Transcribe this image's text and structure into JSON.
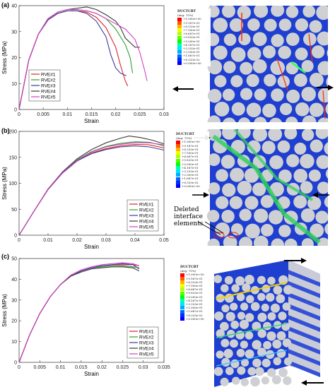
{
  "panels": [
    {
      "label": "(a)",
      "xlabel": "Strain",
      "ylabel": "Stress (MPa)"
    },
    {
      "label": "(b)",
      "xlabel": "Strain",
      "ylabel": "Stress (MPa)"
    },
    {
      "label": "(c)",
      "xlabel": "Strain",
      "ylabel": "Stress (MPa)"
    }
  ],
  "fringe_legend": {
    "title": "DUCTCRT",
    "subtitle": "(Avg: 75%)",
    "values": [
      "+1.000e+00",
      "+9.167e-01",
      "+8.333e-01",
      "+7.500e-01",
      "+6.667e-01",
      "+5.833e-01",
      "+5.000e-01",
      "+4.167e-01",
      "+3.333e-01",
      "+2.500e-01",
      "+1.667e-01",
      "+8.333e-02",
      "+0.000e+00"
    ],
    "colors": [
      "#ff0000",
      "#ff5a00",
      "#ffb400",
      "#f0ff00",
      "#b4ff00",
      "#5aff00",
      "#00ff00",
      "#00ffb4",
      "#00e6ff",
      "#00aaff",
      "#0064ff",
      "#0028ff",
      "#0000ff"
    ]
  },
  "annotation": "Deleted interface elements",
  "chart_data": [
    {
      "type": "line",
      "title": "",
      "xlabel": "Strain",
      "ylabel": "Stress (MPa)",
      "xlim": [
        0,
        0.03
      ],
      "ylim": [
        0,
        40
      ],
      "xticks": [
        "0",
        "0.005",
        "0.01",
        "0.015",
        "0.02",
        "0.025",
        "0.03"
      ],
      "yticks": [
        "0",
        "10",
        "20",
        "30",
        "40"
      ],
      "legend": "lower-left",
      "series": [
        {
          "name": "RVE#1",
          "color": "#d9262b",
          "x": [
            0,
            0.002,
            0.004,
            0.006,
            0.008,
            0.01,
            0.012,
            0.014,
            0.016,
            0.018,
            0.02,
            0.021,
            0.022,
            0.0225
          ],
          "y": [
            0,
            19,
            29,
            34.5,
            37,
            38,
            38,
            37.5,
            35.5,
            31.5,
            24,
            17,
            11,
            9
          ]
        },
        {
          "name": "RVE#2",
          "color": "#2ea02e",
          "x": [
            0,
            0.002,
            0.004,
            0.006,
            0.008,
            0.01,
            0.012,
            0.014,
            0.016,
            0.018,
            0.02,
            0.022,
            0.023,
            0.0235
          ],
          "y": [
            0,
            19,
            29,
            35,
            37.5,
            38.5,
            38.5,
            38,
            37,
            35,
            31,
            25,
            20,
            14
          ]
        },
        {
          "name": "RVE#3",
          "color": "#3b3b9e",
          "x": [
            0,
            0.002,
            0.004,
            0.006,
            0.008,
            0.01,
            0.012,
            0.014,
            0.016,
            0.018,
            0.019,
            0.02,
            0.021,
            0.0222
          ],
          "y": [
            0,
            19,
            29,
            34.5,
            37,
            38,
            38,
            37,
            34,
            28,
            21,
            16,
            14,
            13
          ]
        },
        {
          "name": "RVE#4",
          "color": "#3a3a3a",
          "x": [
            0,
            0.002,
            0.004,
            0.006,
            0.008,
            0.01,
            0.012,
            0.014,
            0.016,
            0.018,
            0.02,
            0.021,
            0.022,
            0.024,
            0.025
          ],
          "y": [
            0,
            19,
            29,
            35,
            37.5,
            38.5,
            39,
            39.5,
            38.5,
            36.5,
            34,
            31.5,
            27.5,
            24,
            24
          ]
        },
        {
          "name": "RVE#5",
          "color": "#d63fc4",
          "x": [
            0,
            0.002,
            0.004,
            0.006,
            0.008,
            0.01,
            0.012,
            0.014,
            0.016,
            0.018,
            0.02,
            0.022,
            0.024,
            0.025,
            0.026,
            0.0265
          ],
          "y": [
            0,
            19,
            29,
            35,
            37.5,
            38.5,
            38.5,
            38,
            37,
            35,
            33,
            31,
            27,
            22,
            15,
            11
          ]
        }
      ]
    },
    {
      "type": "line",
      "title": "",
      "xlabel": "Strain",
      "ylabel": "Stress (MPa)",
      "xlim": [
        0,
        0.05
      ],
      "ylim": [
        0,
        200
      ],
      "xticks": [
        "0",
        "0.01",
        "0.02",
        "0.03",
        "0.04",
        "0.05"
      ],
      "yticks": [
        "0",
        "50",
        "100",
        "150",
        "200"
      ],
      "legend": "lower-right",
      "series": [
        {
          "name": "RVE#1",
          "color": "#d9262b",
          "x": [
            0,
            0.005,
            0.01,
            0.015,
            0.02,
            0.025,
            0.03,
            0.035,
            0.04,
            0.045,
            0.05
          ],
          "y": [
            0,
            45,
            88,
            120,
            143,
            158,
            167,
            172,
            175,
            174,
            168
          ]
        },
        {
          "name": "RVE#2",
          "color": "#2ea02e",
          "x": [
            0,
            0.005,
            0.01,
            0.015,
            0.02,
            0.025,
            0.03,
            0.035,
            0.04,
            0.045,
            0.05
          ],
          "y": [
            0,
            45,
            88,
            121,
            145,
            161,
            171,
            177,
            180,
            179,
            172
          ]
        },
        {
          "name": "RVE#3",
          "color": "#3b3b9e",
          "x": [
            0,
            0.005,
            0.01,
            0.015,
            0.02,
            0.025,
            0.03,
            0.035,
            0.04,
            0.045,
            0.05
          ],
          "y": [
            0,
            45,
            88,
            120,
            143,
            157,
            165,
            170,
            172,
            170,
            164
          ]
        },
        {
          "name": "RVE#4",
          "color": "#3a3a3a",
          "x": [
            0,
            0.005,
            0.01,
            0.015,
            0.02,
            0.025,
            0.03,
            0.035,
            0.038,
            0.042,
            0.046,
            0.05
          ],
          "y": [
            0,
            45,
            89,
            122,
            147,
            165,
            178,
            187,
            191,
            188,
            183,
            176
          ]
        },
        {
          "name": "RVE#5",
          "color": "#d63fc4",
          "x": [
            0,
            0.005,
            0.01,
            0.015,
            0.02,
            0.025,
            0.03,
            0.035,
            0.04,
            0.045,
            0.05
          ],
          "y": [
            0,
            45,
            88,
            121,
            144,
            160,
            170,
            175,
            178,
            178,
            174
          ]
        }
      ]
    },
    {
      "type": "line",
      "title": "",
      "xlabel": "Strain",
      "ylabel": "Stress (MPa)",
      "xlim": [
        0,
        0.035
      ],
      "ylim": [
        0,
        50
      ],
      "xticks": [
        "0",
        "0.005",
        "0.01",
        "0.015",
        "0.02",
        "0.025",
        "0.03",
        "0.035"
      ],
      "yticks": [
        "0",
        "10",
        "20",
        "30",
        "40",
        "50"
      ],
      "legend": "lower-right",
      "series": [
        {
          "name": "RVE#1",
          "color": "#d9262b",
          "x": [
            0,
            0.0025,
            0.005,
            0.0075,
            0.01,
            0.0125,
            0.015,
            0.0175,
            0.02,
            0.0225,
            0.025,
            0.0275,
            0.029
          ],
          "y": [
            0,
            13,
            23.5,
            31.5,
            37.5,
            41.5,
            44,
            45.5,
            46.5,
            47,
            47,
            47,
            46.5
          ]
        },
        {
          "name": "RVE#2",
          "color": "#2ea02e",
          "x": [
            0,
            0.0025,
            0.005,
            0.0075,
            0.01,
            0.0125,
            0.015,
            0.0175,
            0.02,
            0.0225,
            0.025,
            0.0275,
            0.029
          ],
          "y": [
            0,
            13,
            23.5,
            31.5,
            37.5,
            41.5,
            44,
            45.5,
            46,
            46.5,
            46.5,
            46,
            45.5
          ]
        },
        {
          "name": "RVE#3",
          "color": "#3b3b9e",
          "x": [
            0,
            0.0025,
            0.005,
            0.0075,
            0.01,
            0.0125,
            0.015,
            0.0175,
            0.02,
            0.0225,
            0.025,
            0.0275,
            0.029
          ],
          "y": [
            0,
            13,
            23.5,
            31.5,
            37.5,
            41.5,
            44,
            45.5,
            46.5,
            47,
            47.5,
            47,
            45
          ]
        },
        {
          "name": "RVE#4",
          "color": "#3a3a3a",
          "x": [
            0,
            0.0025,
            0.005,
            0.0075,
            0.01,
            0.0125,
            0.015,
            0.0175,
            0.02,
            0.0225,
            0.025,
            0.0275,
            0.029
          ],
          "y": [
            0,
            13,
            23.5,
            31.5,
            37.5,
            41.5,
            43.5,
            45,
            45.5,
            46,
            46,
            45.5,
            44
          ]
        },
        {
          "name": "RVE#5",
          "color": "#d63fc4",
          "x": [
            0,
            0.0025,
            0.005,
            0.0075,
            0.01,
            0.0125,
            0.015,
            0.0175,
            0.02,
            0.0225,
            0.025,
            0.0275,
            0.029
          ],
          "y": [
            0,
            13,
            23.5,
            31.5,
            37.5,
            42,
            44.5,
            46,
            47,
            47.5,
            48,
            47.5,
            46.5
          ]
        }
      ]
    }
  ]
}
